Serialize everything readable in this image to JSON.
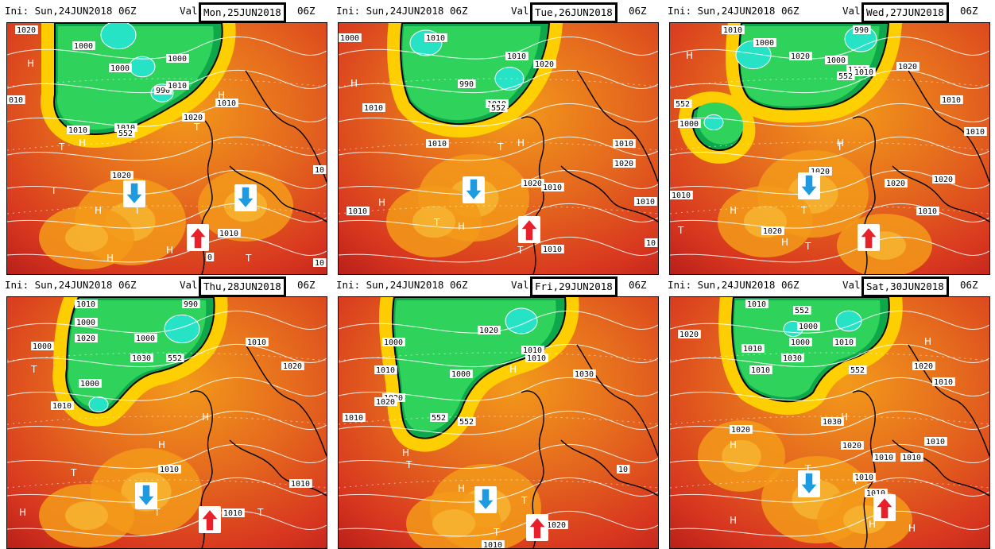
{
  "panels": [
    {
      "ini": "Ini: Sun,24JUN2018 06Z",
      "val_label": "Val:",
      "valid": "Mon,25JUN2018",
      "tz": "06Z",
      "isobar_labels": [
        "1020",
        "1000",
        "1000",
        "1000",
        "990",
        "1010",
        "1010",
        "1010",
        "552",
        "1020",
        "1020",
        "1010",
        "010",
        "10",
        "1010",
        "10",
        "0"
      ],
      "hl": [
        "H",
        "H",
        "H",
        "T",
        "T",
        "H",
        "T",
        "T",
        "H",
        "T",
        "H"
      ],
      "arrows": [
        {
          "dir": "down",
          "color": "#1e9be0"
        },
        {
          "dir": "down",
          "color": "#1e9be0"
        },
        {
          "dir": "up",
          "color": "#e8202a"
        }
      ]
    },
    {
      "ini": "Ini: Sun,24JUN2018 06Z",
      "val_label": "Val:",
      "valid": "Tue,26JUN2018",
      "tz": "06Z",
      "isobar_labels": [
        "1000",
        "1010",
        "990",
        "1010",
        "1020",
        "1010",
        "552",
        "1010",
        "1010",
        "1010",
        "1020",
        "1020",
        "1010",
        "1010",
        "1010",
        "1010",
        "10"
      ],
      "hl": [
        "H",
        "H",
        "T",
        "H",
        "T",
        "H",
        "T"
      ],
      "arrows": [
        {
          "dir": "down",
          "color": "#1e9be0"
        },
        {
          "dir": "up",
          "color": "#e8202a"
        }
      ]
    },
    {
      "ini": "Ini: Sun,24JUN2018 06Z",
      "val_label": "Val:",
      "valid": "Wed,27JUN2018",
      "tz": "06Z",
      "isobar_labels": [
        "1010",
        "990",
        "1000",
        "1020",
        "1000",
        "1010",
        "552",
        "1010",
        "1020",
        "552",
        "1000",
        "1010",
        "1010",
        "1020",
        "1020",
        "1020",
        "1010",
        "1010",
        "1020"
      ],
      "hl": [
        "H",
        "H",
        "T",
        "H",
        "T",
        "H",
        "T",
        "T"
      ],
      "arrows": [
        {
          "dir": "down",
          "color": "#1e9be0"
        },
        {
          "dir": "up",
          "color": "#e8202a"
        }
      ]
    },
    {
      "ini": "Ini: Sun,24JUN2018 06Z",
      "val_label": "Val:",
      "valid": "Thu,28JUN2018",
      "tz": "06Z",
      "isobar_labels": [
        "1010",
        "990",
        "1000",
        "1000",
        "1020",
        "1000",
        "1030",
        "1000",
        "552",
        "1010",
        "1010",
        "1020",
        "1010",
        "1010",
        "1010"
      ],
      "hl": [
        "T",
        "H",
        "H",
        "T",
        "H",
        "T",
        "T"
      ],
      "arrows": [
        {
          "dir": "down",
          "color": "#1e9be0"
        },
        {
          "dir": "up",
          "color": "#e8202a"
        }
      ]
    },
    {
      "ini": "Ini: Sun,24JUN2018 06Z",
      "val_label": "Val:",
      "valid": "Fri,29JUN2018",
      "tz": "06Z",
      "isobar_labels": [
        "1000",
        "1020",
        "1010",
        "1000",
        "552",
        "1010",
        "1010",
        "1020",
        "1030",
        "1010",
        "552",
        "1020",
        "1010",
        "10",
        "1020"
      ],
      "hl": [
        "H",
        "H",
        "T",
        "H",
        "T",
        "T"
      ],
      "arrows": [
        {
          "dir": "down",
          "color": "#1e9be0"
        },
        {
          "dir": "up",
          "color": "#e8202a"
        }
      ]
    },
    {
      "ini": "Ini: Sun,24JUN2018 06Z",
      "val_label": "Val:",
      "valid": "Sat,30JUN2018",
      "tz": "06Z",
      "isobar_labels": [
        "1010",
        "1020",
        "552",
        "1000",
        "1010",
        "1010",
        "1000",
        "1030",
        "1010",
        "552",
        "1020",
        "1020",
        "1030",
        "1020",
        "1010",
        "1010",
        "1010",
        "1010",
        "1010",
        "1010"
      ],
      "hl": [
        "H",
        "H",
        "H",
        "T",
        "T",
        "H",
        "H",
        "H"
      ],
      "arrows": [
        {
          "dir": "down",
          "color": "#1e9be0"
        },
        {
          "dir": "up",
          "color": "#e8202a"
        }
      ]
    }
  ],
  "colors": {
    "green_dark": "#0ea84a",
    "green_light": "#2fd35c",
    "cyan": "#27e3c6",
    "yellow": "#ffd400",
    "orange": "#f39a1a",
    "orange_dark": "#e4661e",
    "red": "#d8361f",
    "red_dark": "#b9201a",
    "arrow_blue": "#1e9be0",
    "arrow_red": "#e8202a"
  }
}
